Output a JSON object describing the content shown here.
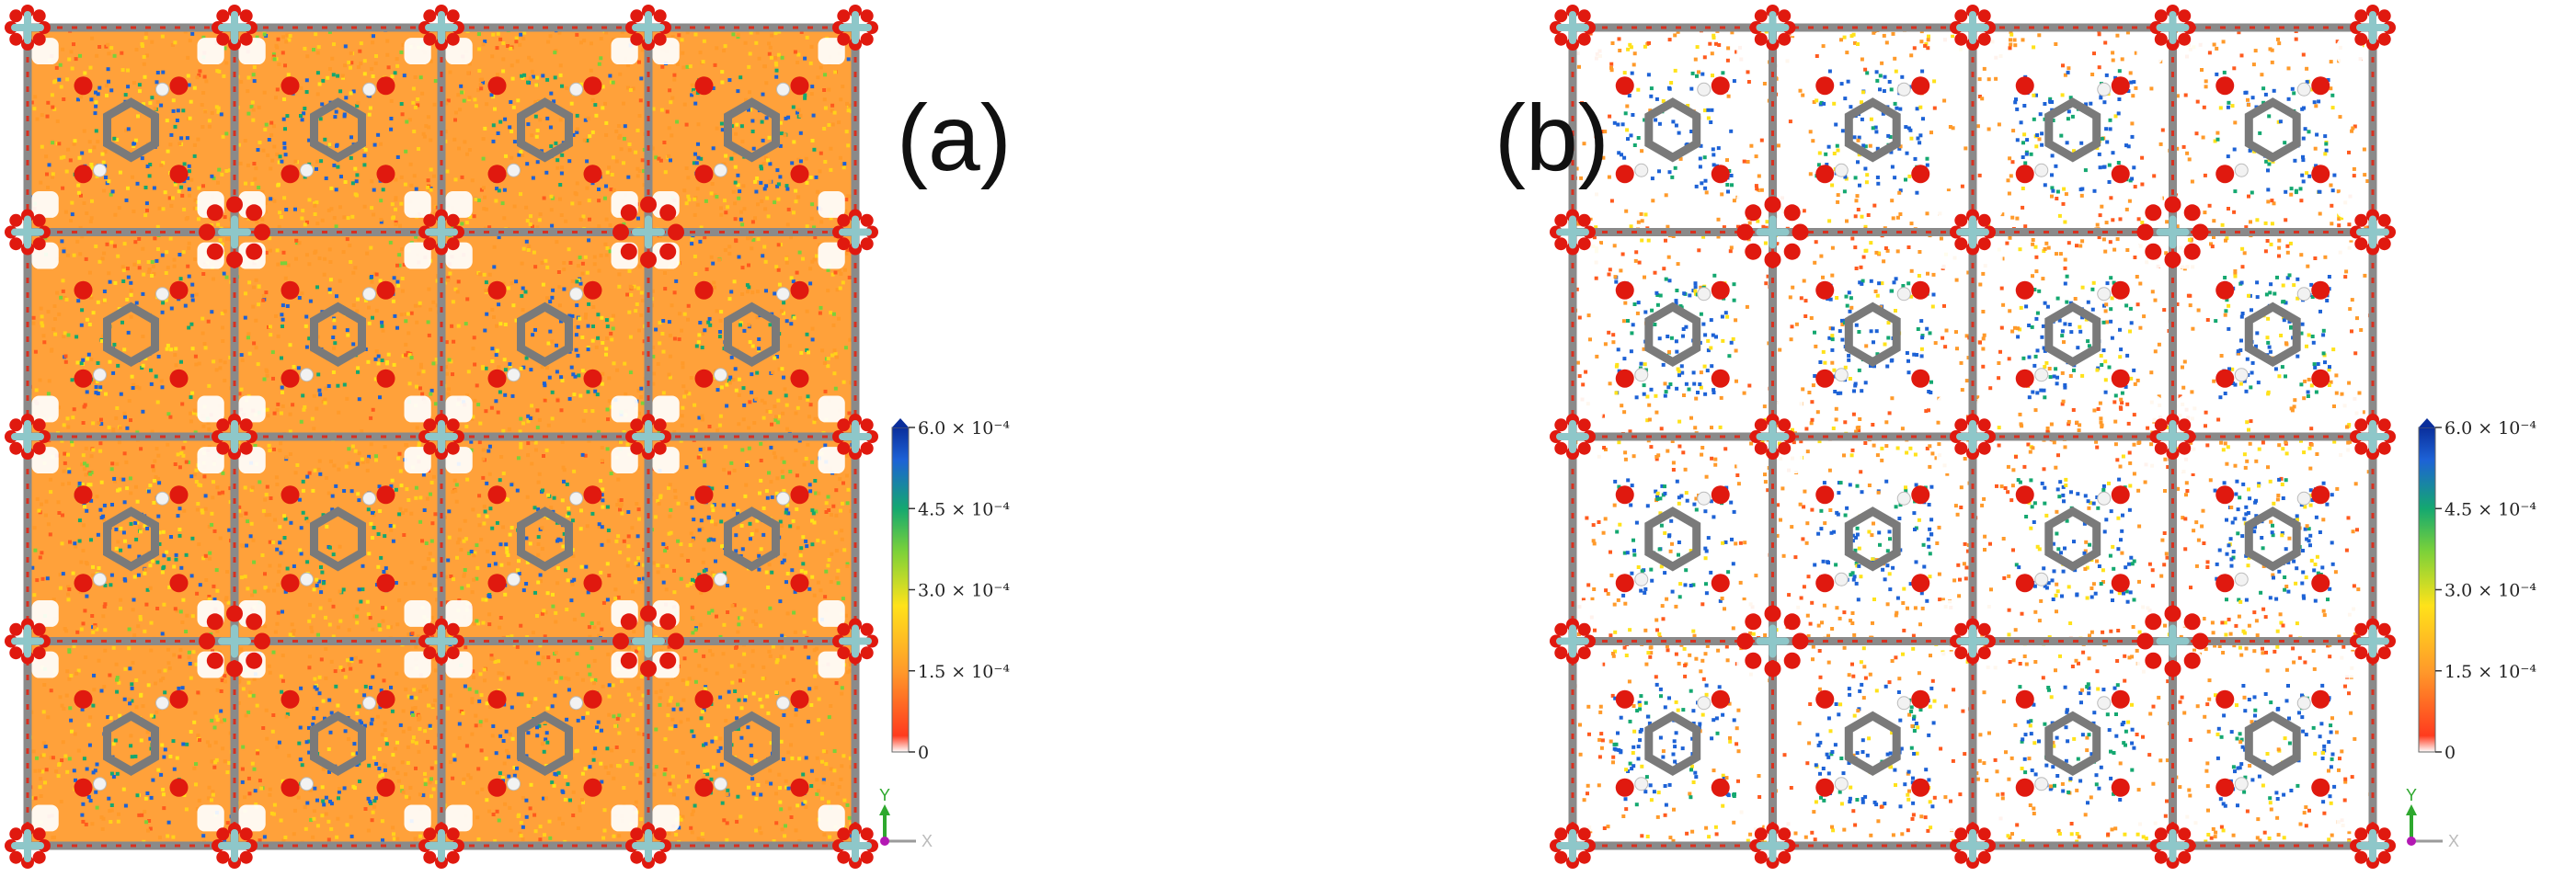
{
  "figure": {
    "panels": [
      {
        "id": "a",
        "label": "(a)",
        "density_profile": "orange-dominant",
        "colorbar": {
          "ticks": [
            "6.0 × 10⁻⁴",
            "4.5 × 10⁻⁴",
            "3.0 × 10⁻⁴",
            "1.5 × 10⁻⁴",
            "0"
          ],
          "max": 0.0006,
          "min": 0
        },
        "axis_indicator": {
          "y_label": "Y",
          "x_label": "X"
        }
      },
      {
        "id": "b",
        "label": "(b)",
        "density_profile": "blue-in-cages",
        "colorbar": {
          "ticks": [
            "6.0 × 10⁻⁴",
            "4.5 × 10⁻⁴",
            "3.0 × 10⁻⁴",
            "1.5 × 10⁻⁴",
            "0"
          ],
          "max": 0.0006,
          "min": 0
        },
        "axis_indicator": {
          "y_label": "Y",
          "x_label": "X"
        }
      }
    ],
    "colors": {
      "colormap": [
        "#ffffff",
        "#ff3b1e",
        "#ff9a2a",
        "#ffe21a",
        "#7ad13a",
        "#14a870",
        "#1d62d6",
        "#0a2e9b"
      ],
      "oxygen": "#e0190f",
      "carbon": "#7a7a7a",
      "hydrogen": "#f2f2f2",
      "metal": "#8ec7c9",
      "axis_y": "#2ea82e",
      "axis_x": "#9a9a9a",
      "axis_z": "#b318b3"
    },
    "icons": {
      "molecule": "framework-structure",
      "axes": "xyz-axis-triad-icon"
    }
  }
}
